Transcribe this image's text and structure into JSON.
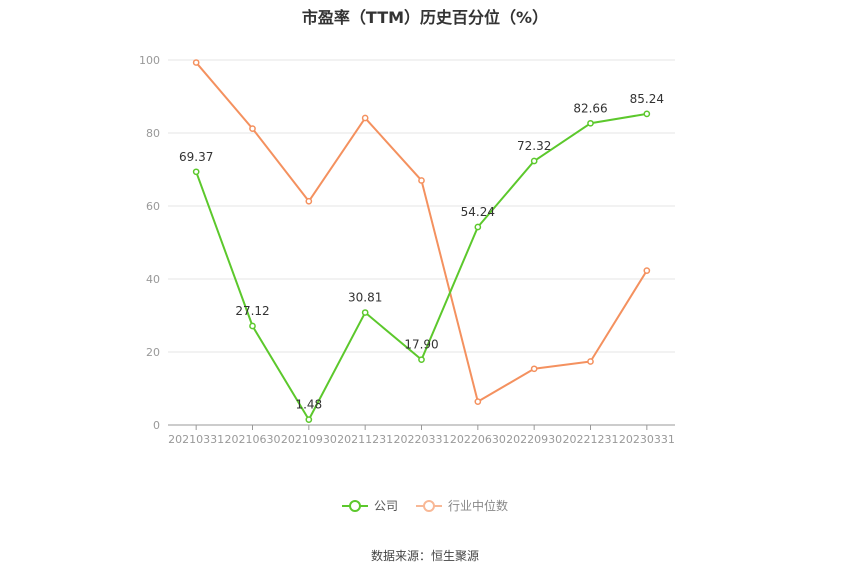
{
  "title": "市盈率（TTM）历史百分位（%）",
  "source": "数据来源：恒生聚源",
  "colors": {
    "company": "#5cc82c",
    "industry": "#f4915f",
    "grid": "#e6e6e6",
    "axis": "#999999"
  },
  "chart_data": {
    "type": "line",
    "title": "市盈率（TTM）历史百分位（%）",
    "categories": [
      "20210331",
      "20210630",
      "20210930",
      "20211231",
      "20220331",
      "20220630",
      "20220930",
      "20221231",
      "20230331"
    ],
    "ylim": [
      0,
      100
    ],
    "yticks": [
      0,
      20,
      40,
      60,
      80,
      100
    ],
    "grid": true,
    "legend_position": "bottom",
    "series": [
      {
        "name": "公司",
        "values": [
          69.37,
          27.12,
          1.48,
          30.81,
          17.9,
          54.24,
          72.32,
          82.66,
          85.24
        ],
        "labels": [
          "69.37",
          "27.12",
          "1.48",
          "30.81",
          "17.90",
          "54.24",
          "72.32",
          "82.66",
          "85.24"
        ],
        "color": "#5cc82c"
      },
      {
        "name": "行业中位数",
        "values": [
          99.3,
          81.2,
          61.3,
          84.1,
          67.0,
          6.4,
          15.4,
          17.4,
          42.3
        ],
        "color": "#f4915f"
      }
    ]
  }
}
